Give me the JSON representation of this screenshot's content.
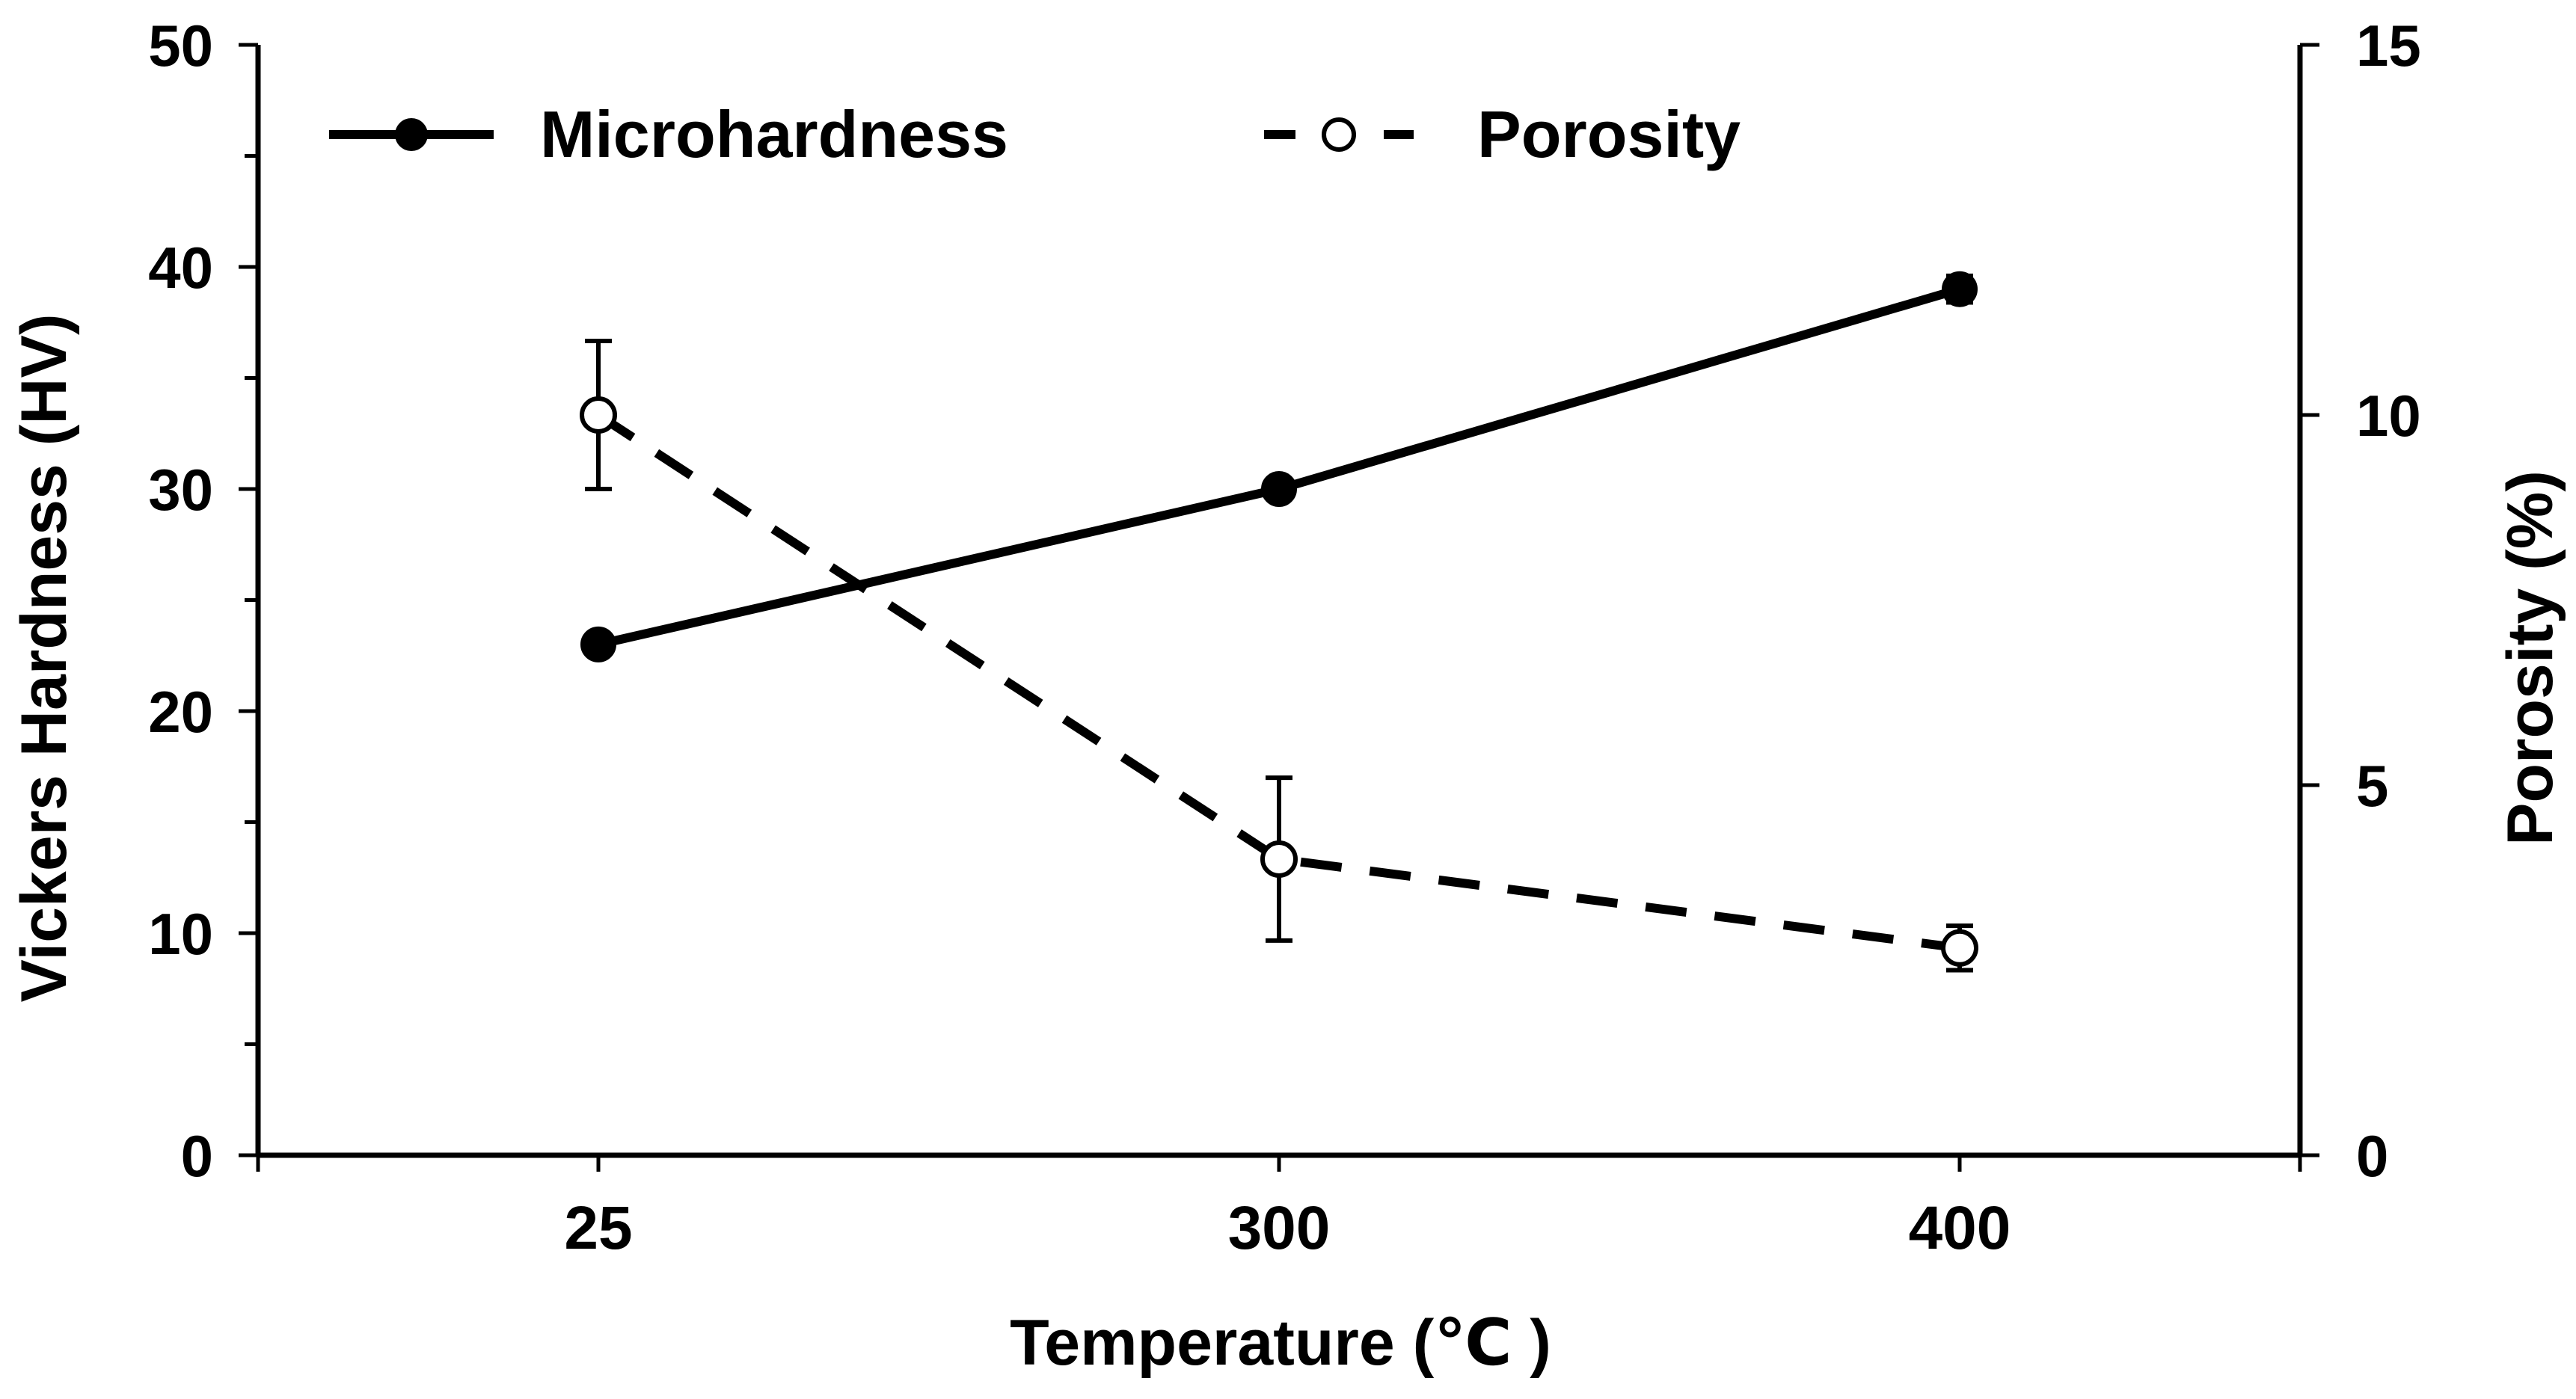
{
  "chart_data": {
    "type": "line",
    "title": "",
    "xlabel": "Temperature (℃ )",
    "ylabel_left": "Vickers Hardness (HV)",
    "ylabel_right": "Porosity (%)",
    "categories": [
      "25",
      "300",
      "400"
    ],
    "ylim_left": [
      0,
      50
    ],
    "ylim_right": [
      0,
      15
    ],
    "yticks_left": [
      "0",
      "10",
      "20",
      "30",
      "40",
      "50"
    ],
    "yticks_right": [
      "0",
      "5",
      "10",
      "15"
    ],
    "grid": false,
    "legend_position": "top-left",
    "series": [
      {
        "name": "Microhardness",
        "axis": "left",
        "style": "solid",
        "marker": "filled-circle",
        "values": [
          23,
          30,
          39
        ],
        "errors": [
          0.3,
          0.3,
          0.6
        ]
      },
      {
        "name": "Porosity",
        "axis": "right",
        "style": "dashed",
        "marker": "open-circle",
        "values": [
          10,
          4,
          2.8
        ],
        "errors": [
          1.0,
          1.1,
          0.3
        ]
      }
    ]
  },
  "colors": {
    "line": "#000000",
    "background": "#ffffff"
  }
}
